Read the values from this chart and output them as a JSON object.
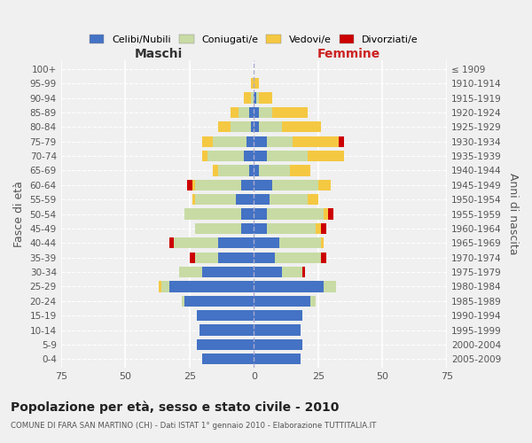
{
  "age_groups": [
    "0-4",
    "5-9",
    "10-14",
    "15-19",
    "20-24",
    "25-29",
    "30-34",
    "35-39",
    "40-44",
    "45-49",
    "50-54",
    "55-59",
    "60-64",
    "65-69",
    "70-74",
    "75-79",
    "80-84",
    "85-89",
    "90-94",
    "95-99",
    "100+"
  ],
  "birth_years": [
    "2005-2009",
    "2000-2004",
    "1995-1999",
    "1990-1994",
    "1985-1989",
    "1980-1984",
    "1975-1979",
    "1970-1974",
    "1965-1969",
    "1960-1964",
    "1955-1959",
    "1950-1954",
    "1945-1949",
    "1940-1944",
    "1935-1939",
    "1930-1934",
    "1925-1929",
    "1920-1924",
    "1915-1919",
    "1910-1914",
    "≤ 1909"
  ],
  "maschi": {
    "celibi": [
      20,
      22,
      21,
      22,
      27,
      33,
      20,
      14,
      14,
      5,
      5,
      7,
      5,
      2,
      4,
      3,
      1,
      2,
      0,
      0,
      0
    ],
    "coniugati": [
      0,
      0,
      0,
      0,
      1,
      3,
      9,
      9,
      17,
      18,
      22,
      16,
      18,
      12,
      14,
      13,
      8,
      4,
      1,
      0,
      0
    ],
    "vedovi": [
      0,
      0,
      0,
      0,
      0,
      1,
      0,
      0,
      0,
      0,
      0,
      1,
      1,
      2,
      2,
      4,
      5,
      3,
      3,
      1,
      0
    ],
    "divorziati": [
      0,
      0,
      0,
      0,
      0,
      0,
      0,
      2,
      2,
      0,
      0,
      0,
      2,
      0,
      0,
      0,
      0,
      0,
      0,
      0,
      0
    ]
  },
  "femmine": {
    "nubili": [
      18,
      19,
      18,
      19,
      22,
      27,
      11,
      8,
      10,
      5,
      5,
      6,
      7,
      2,
      5,
      5,
      2,
      2,
      1,
      0,
      0
    ],
    "coniugate": [
      0,
      0,
      0,
      0,
      2,
      5,
      8,
      18,
      16,
      19,
      22,
      15,
      18,
      12,
      16,
      10,
      9,
      5,
      1,
      0,
      0
    ],
    "vedove": [
      0,
      0,
      0,
      0,
      0,
      0,
      0,
      0,
      1,
      2,
      2,
      4,
      5,
      8,
      14,
      18,
      15,
      14,
      5,
      2,
      0
    ],
    "divorziate": [
      0,
      0,
      0,
      0,
      0,
      0,
      1,
      2,
      0,
      2,
      2,
      0,
      0,
      0,
      0,
      2,
      0,
      0,
      0,
      0,
      0
    ]
  },
  "colors": {
    "celibi": "#4472C4",
    "coniugati": "#c8dba4",
    "vedovi": "#f5c842",
    "divorziati": "#CC0000"
  },
  "xlim": 75,
  "title": "Popolazione per età, sesso e stato civile - 2010",
  "subtitle": "COMUNE DI FARA SAN MARTINO (CH) - Dati ISTAT 1° gennaio 2010 - Elaborazione TUTTITALIA.IT",
  "ylabel_left": "Fasce di età",
  "ylabel_right": "Anni di nascita",
  "xlabel_left": "Maschi",
  "xlabel_right": "Femmine",
  "bg_color": "#f0f0f0",
  "bar_height": 0.75
}
